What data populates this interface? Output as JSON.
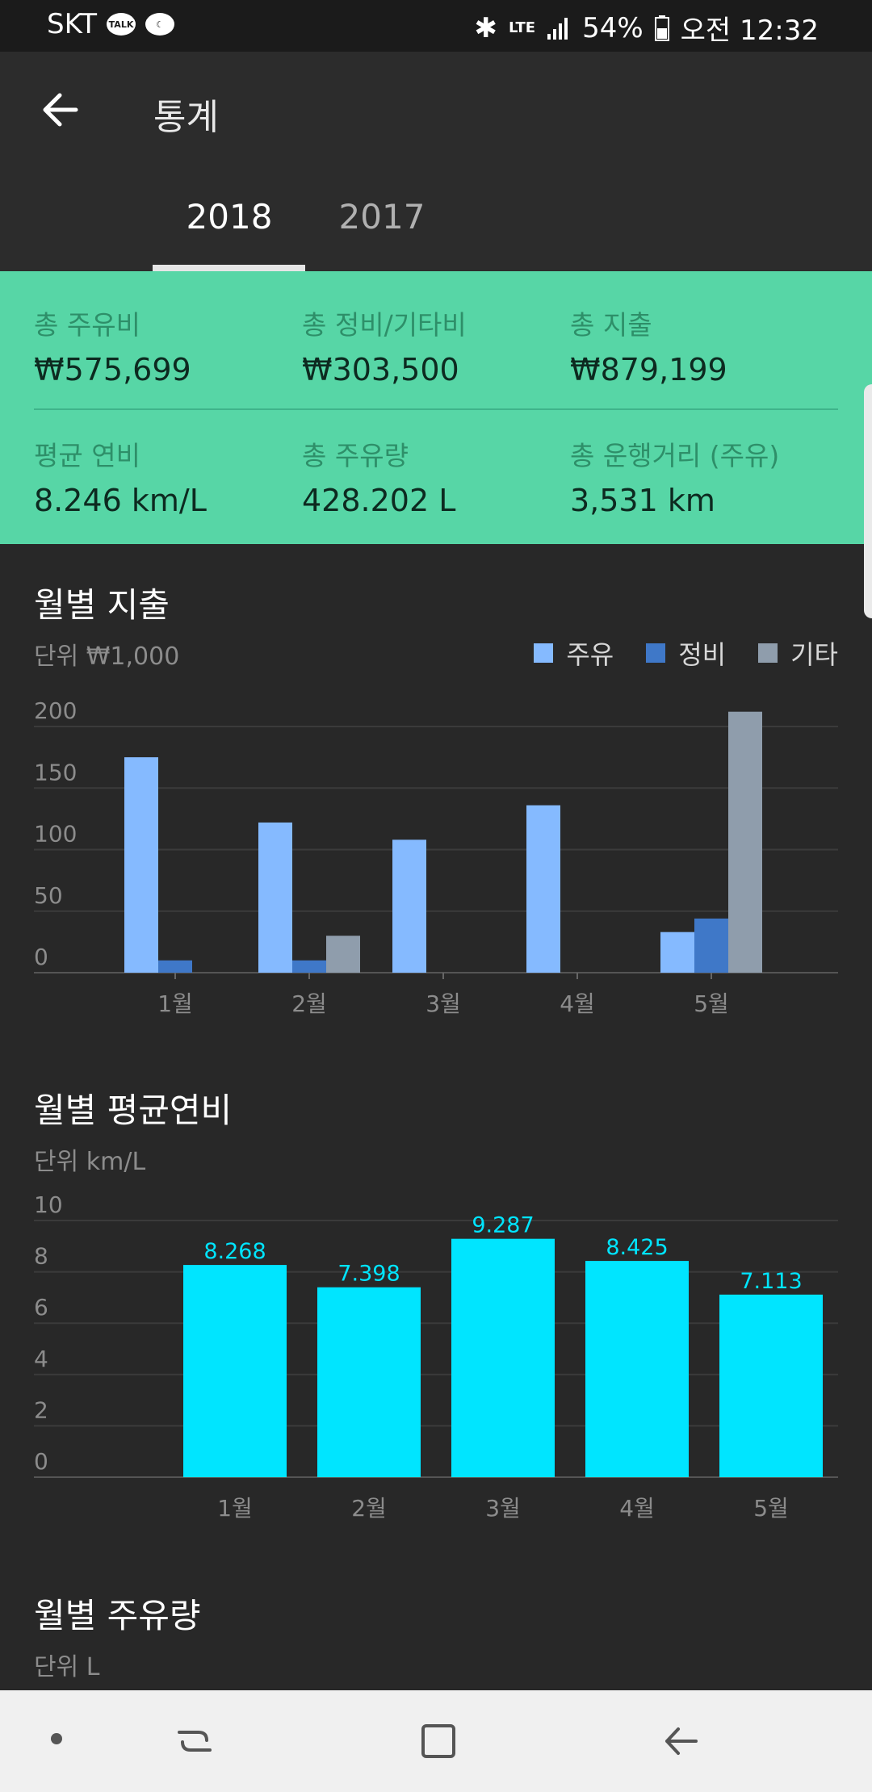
{
  "status_bar": {
    "carrier": "SKT",
    "talk_badge": "TALK",
    "network": "LTE",
    "battery": "54%",
    "time": "오전 12:32"
  },
  "header": {
    "title": "통계"
  },
  "tabs": [
    {
      "label": "2018",
      "active": true
    },
    {
      "label": "2017",
      "active": false
    }
  ],
  "summary": {
    "fuel_cost_label": "총 주유비",
    "fuel_cost_value": "₩575,699",
    "maint_cost_label": "총 정비/기타비",
    "maint_cost_value": "₩303,500",
    "total_label": "총 지출",
    "total_value": "₩879,199",
    "avg_eff_label": "평균 연비",
    "avg_eff_value": "8.246 km/L",
    "fuel_qty_label": "총 주유량",
    "fuel_qty_value": "428.202 L",
    "distance_label": "총 운행거리 (주유)",
    "distance_value": "3,531 km"
  },
  "monthly_spending": {
    "title": "월별 지출",
    "unit": "단위 ₩1,000",
    "legend": [
      "주유",
      "정비",
      "기타"
    ]
  },
  "monthly_efficiency": {
    "title": "월별 평균연비",
    "unit": "단위 km/L"
  },
  "monthly_fuel": {
    "title": "월별 주유량",
    "unit": "단위 L"
  },
  "colors": {
    "fuel": "#85baff",
    "maintenance": "#3f78c8",
    "other": "#8f9dac",
    "efficiency": "#00e5ff",
    "accent": "#57d6a6"
  },
  "chart_data": [
    {
      "type": "bar",
      "title": "월별 지출",
      "ylabel": "단위 ₩1,000",
      "categories": [
        "1월",
        "2월",
        "3월",
        "4월",
        "5월"
      ],
      "series": [
        {
          "name": "주유",
          "values": [
            175,
            122,
            108,
            136,
            33
          ]
        },
        {
          "name": "정비",
          "values": [
            10,
            10,
            0,
            0,
            44
          ]
        },
        {
          "name": "기타",
          "values": [
            0,
            30,
            0,
            0,
            212
          ]
        }
      ],
      "yticks": [
        0,
        50,
        100,
        150,
        200
      ],
      "ylim": [
        0,
        200
      ],
      "grid": true,
      "legend": "top-right"
    },
    {
      "type": "bar",
      "title": "월별 평균연비",
      "ylabel": "단위 km/L",
      "categories": [
        "1월",
        "2월",
        "3월",
        "4월",
        "5월"
      ],
      "values": [
        8.268,
        7.398,
        9.287,
        8.425,
        7.113
      ],
      "data_labels": [
        "8.268",
        "7.398",
        "9.287",
        "8.425",
        "7.113"
      ],
      "yticks": [
        0,
        2,
        4,
        6,
        8,
        10
      ],
      "ylim": [
        0,
        10
      ],
      "grid": true
    }
  ]
}
